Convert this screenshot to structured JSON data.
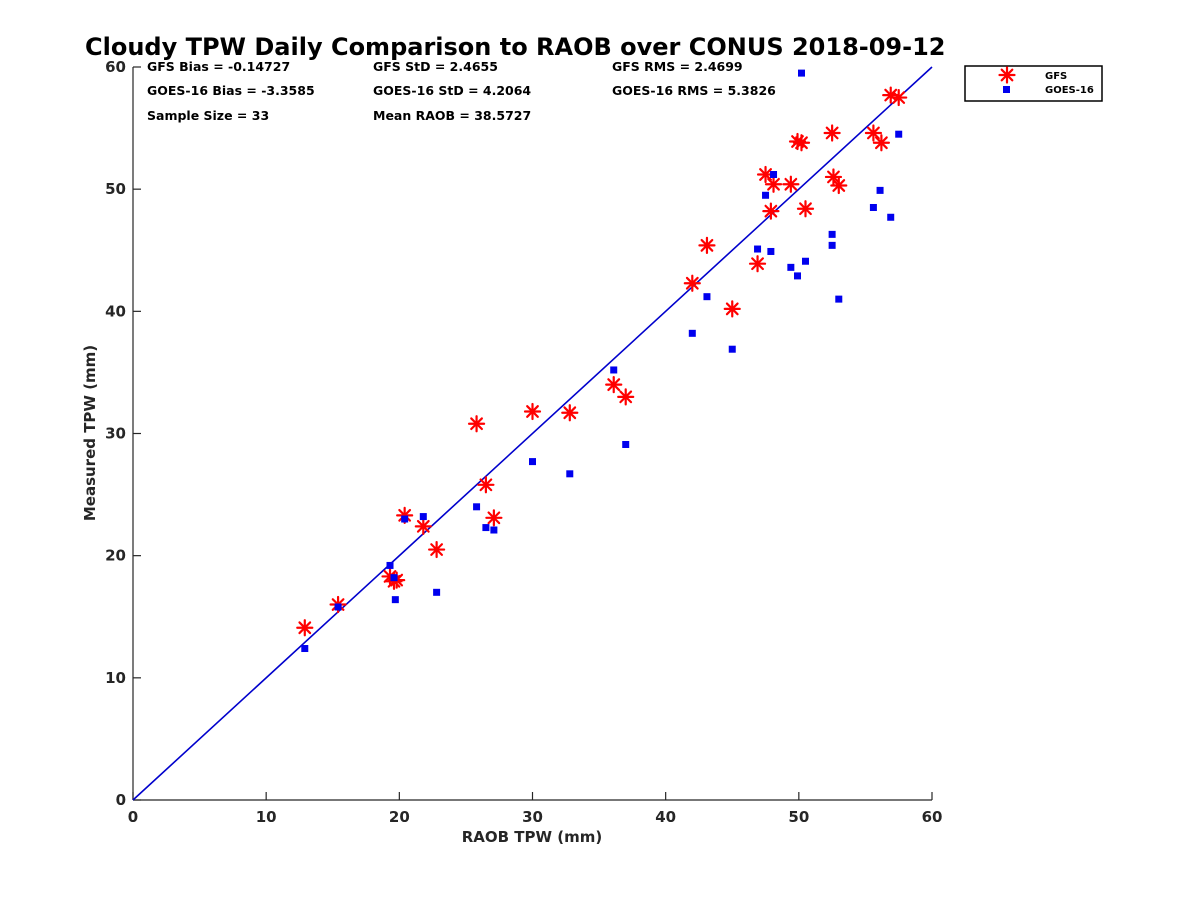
{
  "chart_data": {
    "type": "scatter",
    "title": "Cloudy TPW Daily Comparison to RAOB over CONUS 2018-09-12",
    "xlabel": "RAOB TPW (mm)",
    "ylabel": "Measured TPW (mm)",
    "xlim": [
      0,
      60
    ],
    "ylim": [
      0,
      60
    ],
    "xticks": [
      "0",
      "10",
      "20",
      "30",
      "40",
      "50",
      "60"
    ],
    "yticks": [
      "0",
      "10",
      "20",
      "30",
      "40",
      "50",
      "60"
    ],
    "reference_line": {
      "x": [
        0,
        60
      ],
      "y": [
        0,
        60
      ],
      "color": "#0000cc"
    },
    "stats": [
      [
        "GFS Bias = -0.14727",
        "GFS StD = 2.4655",
        "GFS RMS = 2.4699"
      ],
      [
        "GOES-16 Bias = -3.3585",
        "GOES-16 StD = 4.2064",
        "GOES-16 RMS = 5.3826"
      ],
      [
        "Sample Size = 33",
        "Mean RAOB = 38.5727"
      ]
    ],
    "legend_position": "outside-top-right",
    "series": [
      {
        "name": "GFS",
        "marker": "asterisk",
        "color": "#ff0000",
        "points": [
          [
            12.9,
            14.1
          ],
          [
            15.4,
            16.0
          ],
          [
            19.3,
            18.3
          ],
          [
            19.6,
            17.9
          ],
          [
            19.8,
            18.0
          ],
          [
            20.4,
            23.3
          ],
          [
            21.8,
            22.4
          ],
          [
            22.8,
            20.5
          ],
          [
            25.8,
            30.8
          ],
          [
            26.5,
            25.8
          ],
          [
            27.1,
            23.1
          ],
          [
            30.0,
            31.8
          ],
          [
            32.8,
            31.7
          ],
          [
            36.1,
            34.0
          ],
          [
            37.0,
            33.0
          ],
          [
            42.0,
            42.3
          ],
          [
            43.1,
            45.4
          ],
          [
            45.0,
            40.2
          ],
          [
            46.9,
            43.9
          ],
          [
            47.5,
            51.2
          ],
          [
            47.9,
            48.2
          ],
          [
            48.1,
            50.4
          ],
          [
            49.4,
            50.4
          ],
          [
            49.9,
            53.9
          ],
          [
            50.2,
            53.8
          ],
          [
            50.5,
            48.4
          ],
          [
            52.5,
            54.6
          ],
          [
            52.6,
            51.0
          ],
          [
            53.0,
            50.3
          ],
          [
            55.6,
            54.6
          ],
          [
            56.2,
            53.8
          ],
          [
            56.9,
            57.7
          ],
          [
            57.5,
            57.5
          ]
        ]
      },
      {
        "name": "GOES-16",
        "marker": "square",
        "color": "#0000ee",
        "points": [
          [
            12.9,
            12.4
          ],
          [
            15.4,
            15.8
          ],
          [
            19.3,
            19.2
          ],
          [
            19.6,
            18.2
          ],
          [
            19.7,
            16.4
          ],
          [
            20.4,
            23.0
          ],
          [
            21.8,
            23.2
          ],
          [
            22.8,
            17.0
          ],
          [
            25.8,
            24.0
          ],
          [
            26.5,
            22.3
          ],
          [
            27.1,
            22.1
          ],
          [
            30.0,
            27.7
          ],
          [
            32.8,
            26.7
          ],
          [
            36.1,
            35.2
          ],
          [
            37.0,
            29.1
          ],
          [
            42.0,
            38.2
          ],
          [
            43.1,
            41.2
          ],
          [
            45.0,
            36.9
          ],
          [
            46.9,
            45.1
          ],
          [
            47.5,
            49.5
          ],
          [
            47.9,
            44.9
          ],
          [
            48.1,
            51.2
          ],
          [
            49.4,
            43.6
          ],
          [
            49.9,
            42.9
          ],
          [
            50.2,
            59.5
          ],
          [
            50.5,
            44.1
          ],
          [
            52.5,
            46.3
          ],
          [
            52.5,
            45.4
          ],
          [
            53.0,
            41.0
          ],
          [
            55.6,
            48.5
          ],
          [
            56.1,
            49.9
          ],
          [
            56.9,
            47.7
          ],
          [
            57.5,
            54.5
          ]
        ]
      }
    ]
  }
}
